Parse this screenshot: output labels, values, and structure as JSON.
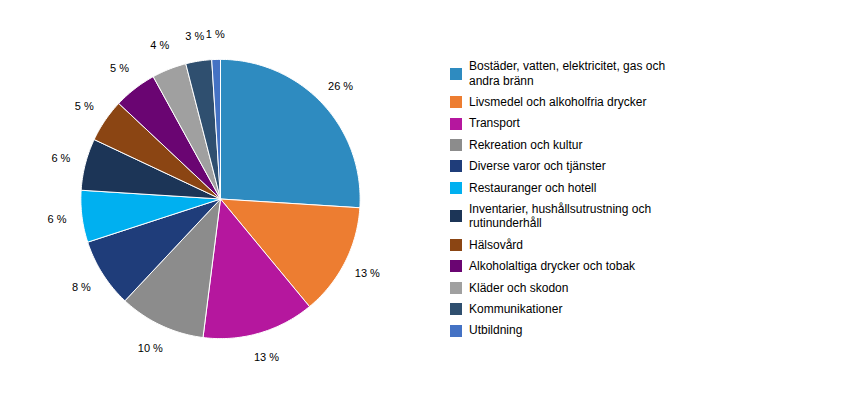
{
  "chart_data": {
    "type": "pie",
    "categories": [
      "Bostäder, vatten, elektricitet, gas och\nandra bränn",
      "Livsmedel och alkoholfria drycker",
      "Transport",
      "Rekreation och kultur",
      "Diverse varor och tjänster",
      "Restauranger och hotell",
      "Inventarier, hushållsutrustning och\nrutinunderhåll",
      "Hälsovård",
      "Alkoholaltiga drycker och tobak",
      "Kläder och skodon",
      "Kommunikationer",
      "Utbildning"
    ],
    "values": [
      26,
      13,
      13,
      10,
      8,
      6,
      6,
      5,
      5,
      4,
      3,
      1
    ],
    "value_labels": [
      "26 %",
      "13 %",
      "13 %",
      "10 %",
      "8 %",
      "6 %",
      "6 %",
      "5 %",
      "5 %",
      "4 %",
      "3 %",
      "1 %"
    ],
    "colors": [
      "#2E8BC0",
      "#ED7D31",
      "#B5179E",
      "#8C8C8C",
      "#1F3D7A",
      "#00B0F0",
      "#1C3557",
      "#8B4513",
      "#6A0572",
      "#A0A0A0",
      "#2F4F6F",
      "#4472C4"
    ],
    "data_labels": true,
    "legend": "right"
  }
}
